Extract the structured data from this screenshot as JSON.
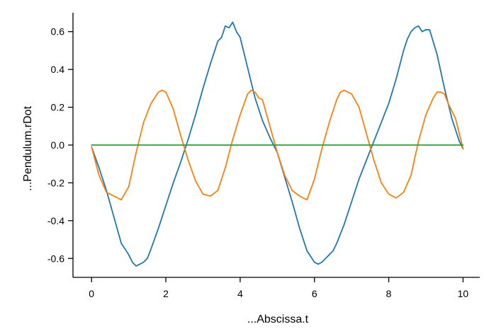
{
  "chart_data": {
    "type": "line",
    "title": "",
    "xlabel": "...Abscissa.t",
    "ylabel": "...Pendulum.rDot",
    "xlim": [
      -0.5,
      10.45
    ],
    "ylim": [
      -0.7,
      0.7
    ],
    "xticks": [
      {
        "value": 0,
        "label": "0"
      },
      {
        "value": 2,
        "label": "2"
      },
      {
        "value": 4,
        "label": "4"
      },
      {
        "value": 6,
        "label": "6"
      },
      {
        "value": 8,
        "label": "8"
      },
      {
        "value": 10,
        "label": "10"
      }
    ],
    "yticks": [
      {
        "value": 0.6,
        "label": "0.6"
      },
      {
        "value": 0.4,
        "label": "0.4"
      },
      {
        "value": 0.2,
        "label": "0.2"
      },
      {
        "value": 0.0,
        "label": "0.0"
      },
      {
        "value": -0.2,
        "label": "-0.2"
      },
      {
        "value": -0.4,
        "label": "-0.4"
      },
      {
        "value": -0.6,
        "label": "-0.6"
      }
    ],
    "grid": false,
    "legend": "none",
    "series": [
      {
        "color": "#1f77b4",
        "x": [
          0.0,
          0.2,
          0.4,
          0.6,
          0.8,
          1.0,
          1.1,
          1.2,
          1.3,
          1.4,
          1.5,
          1.6,
          1.8,
          2.0,
          2.2,
          2.4,
          2.6,
          2.8,
          3.0,
          3.2,
          3.4,
          3.5,
          3.6,
          3.7,
          3.8,
          3.9,
          4.0,
          4.2,
          4.4,
          4.6,
          4.8,
          5.0,
          5.2,
          5.4,
          5.6,
          5.8,
          6.0,
          6.1,
          6.2,
          6.3,
          6.4,
          6.5,
          6.6,
          6.8,
          7.0,
          7.2,
          7.4,
          7.6,
          7.8,
          8.0,
          8.2,
          8.4,
          8.5,
          8.6,
          8.7,
          8.8,
          8.9,
          9.0,
          9.1,
          9.3,
          9.5,
          9.7,
          9.9,
          10.0
        ],
        "y": [
          -0.01,
          -0.12,
          -0.24,
          -0.38,
          -0.52,
          -0.58,
          -0.62,
          -0.64,
          -0.63,
          -0.62,
          -0.6,
          -0.55,
          -0.44,
          -0.32,
          -0.2,
          -0.09,
          0.03,
          0.16,
          0.3,
          0.43,
          0.55,
          0.57,
          0.63,
          0.62,
          0.65,
          0.6,
          0.57,
          0.41,
          0.25,
          0.13,
          0.04,
          -0.04,
          -0.17,
          -0.3,
          -0.44,
          -0.56,
          -0.62,
          -0.63,
          -0.62,
          -0.6,
          -0.58,
          -0.56,
          -0.52,
          -0.42,
          -0.3,
          -0.18,
          -0.08,
          0.02,
          0.12,
          0.22,
          0.35,
          0.5,
          0.56,
          0.6,
          0.62,
          0.63,
          0.6,
          0.61,
          0.61,
          0.48,
          0.3,
          0.14,
          0.02,
          -0.02
        ]
      },
      {
        "color": "#ff7f0e",
        "x": [
          0.0,
          0.2,
          0.4,
          0.6,
          0.8,
          1.0,
          1.2,
          1.4,
          1.6,
          1.8,
          1.9,
          2.0,
          2.2,
          2.4,
          2.6,
          2.8,
          3.0,
          3.2,
          3.4,
          3.6,
          3.8,
          4.0,
          4.2,
          4.3,
          4.4,
          4.5,
          4.6,
          4.8,
          5.0,
          5.2,
          5.4,
          5.6,
          5.8,
          6.0,
          6.2,
          6.4,
          6.6,
          6.7,
          6.8,
          6.9,
          7.0,
          7.2,
          7.4,
          7.6,
          7.8,
          8.0,
          8.2,
          8.4,
          8.6,
          8.8,
          9.0,
          9.2,
          9.3,
          9.4,
          9.5,
          9.6,
          9.8,
          10.0
        ],
        "y": [
          -0.01,
          -0.16,
          -0.25,
          -0.27,
          -0.29,
          -0.22,
          -0.04,
          0.12,
          0.22,
          0.28,
          0.29,
          0.28,
          0.19,
          0.05,
          -0.08,
          -0.19,
          -0.26,
          -0.27,
          -0.24,
          -0.12,
          0.03,
          0.16,
          0.27,
          0.29,
          0.28,
          0.25,
          0.24,
          0.1,
          -0.04,
          -0.16,
          -0.24,
          -0.27,
          -0.29,
          -0.18,
          -0.02,
          0.12,
          0.24,
          0.28,
          0.29,
          0.28,
          0.27,
          0.2,
          0.06,
          -0.08,
          -0.2,
          -0.26,
          -0.28,
          -0.25,
          -0.16,
          0.02,
          0.16,
          0.25,
          0.28,
          0.28,
          0.27,
          0.22,
          0.14,
          -0.02
        ]
      },
      {
        "color": "#2ca02c",
        "x": [
          0.0,
          10.0
        ],
        "y": [
          0.0,
          0.0
        ]
      }
    ]
  }
}
